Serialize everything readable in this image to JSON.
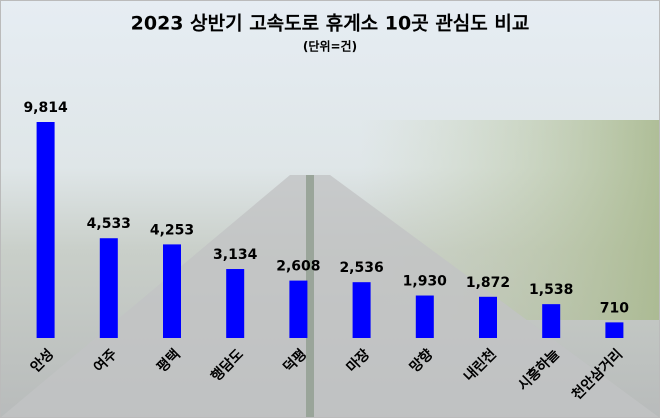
{
  "chart_data": {
    "type": "bar",
    "title": "2023 상반기 고속도로 휴게소 10곳 관심도 비교",
    "subtitle": "(단위=건)",
    "categories": [
      "안성",
      "여주",
      "평택",
      "행담도",
      "덕평",
      "마장",
      "망향",
      "내린천",
      "시흥하늘",
      "천안삼거리"
    ],
    "values": [
      9814,
      4533,
      4253,
      3134,
      2608,
      2536,
      1930,
      1872,
      1538,
      710
    ],
    "value_labels": [
      "9,814",
      "4,533",
      "4,253",
      "3,134",
      "2,608",
      "2,536",
      "1,930",
      "1,872",
      "1,538",
      "710"
    ],
    "color": "#0000ff"
  }
}
